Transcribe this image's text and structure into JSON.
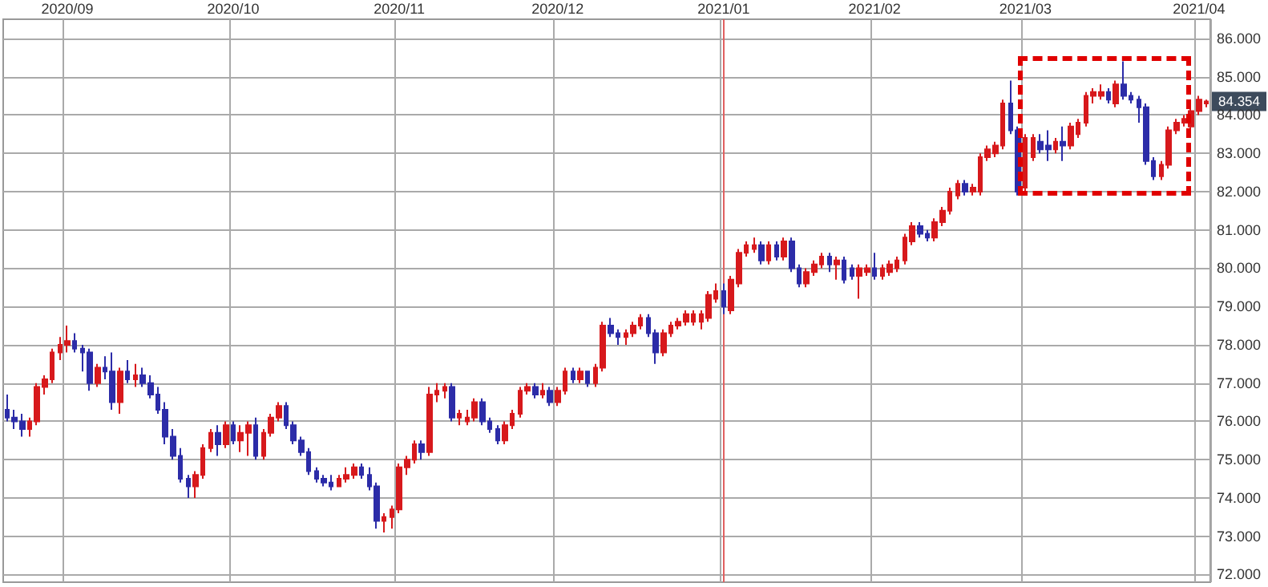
{
  "chart_data": {
    "type": "candlestick",
    "categories": [
      null,
      null,
      null,
      null,
      null,
      null,
      null,
      null,
      "2020/09",
      null,
      null,
      null,
      null,
      null,
      null,
      null,
      null,
      null,
      null,
      null,
      null,
      null,
      null,
      null,
      null,
      null,
      null,
      null,
      null,
      null,
      "2020/10",
      null,
      null,
      null,
      null,
      null,
      null,
      null,
      null,
      null,
      null,
      null,
      null,
      null,
      null,
      null,
      null,
      null,
      null,
      null,
      null,
      null,
      "2020/11",
      null,
      null,
      null,
      null,
      null,
      null,
      null,
      null,
      null,
      null,
      null,
      null,
      null,
      null,
      null,
      null,
      null,
      null,
      null,
      null,
      "2020/12",
      null,
      null,
      null,
      null,
      null,
      null,
      null,
      null,
      null,
      null,
      null,
      null,
      null,
      null,
      null,
      null,
      null,
      null,
      null,
      null,
      null,
      "2021/01",
      null,
      null,
      null,
      null,
      null,
      null,
      null,
      null,
      null,
      null,
      null,
      null,
      null,
      null,
      null,
      null,
      null,
      null,
      null,
      "2021/02",
      null,
      null,
      null,
      null,
      null,
      null,
      null,
      null,
      null,
      null,
      null,
      null,
      null,
      null,
      null,
      null,
      null,
      null,
      null,
      "2021/03",
      null,
      null,
      null,
      null,
      null,
      null,
      null,
      null,
      null,
      null,
      null,
      null,
      null,
      null,
      null,
      null,
      null,
      null,
      null,
      null,
      null,
      null,
      "2021/04",
      null
    ],
    "ohlc": [
      [
        76.3,
        76.7,
        76.0,
        76.1
      ],
      [
        76.1,
        76.3,
        75.8,
        76.0
      ],
      [
        76.0,
        76.2,
        75.6,
        75.8
      ],
      [
        75.8,
        76.1,
        75.6,
        76.0
      ],
      [
        76.0,
        77.0,
        75.9,
        76.9
      ],
      [
        76.9,
        77.2,
        76.7,
        77.1
      ],
      [
        77.1,
        77.9,
        77.0,
        77.8
      ],
      [
        77.8,
        78.2,
        77.6,
        78.0
      ],
      [
        78.0,
        78.5,
        77.8,
        78.1
      ],
      [
        78.1,
        78.3,
        77.8,
        77.9
      ],
      [
        77.9,
        78.0,
        77.3,
        77.8
      ],
      [
        77.8,
        77.9,
        76.8,
        77.0
      ],
      [
        77.0,
        77.5,
        76.9,
        77.4
      ],
      [
        77.4,
        77.7,
        77.1,
        77.3
      ],
      [
        77.3,
        77.8,
        76.3,
        76.5
      ],
      [
        76.5,
        77.4,
        76.2,
        77.3
      ],
      [
        77.3,
        77.6,
        77.0,
        77.1
      ],
      [
        77.1,
        77.5,
        76.9,
        77.2
      ],
      [
        77.2,
        77.4,
        76.9,
        77.0
      ],
      [
        77.0,
        77.2,
        76.6,
        76.7
      ],
      [
        76.7,
        76.9,
        76.2,
        76.3
      ],
      [
        76.3,
        76.5,
        75.4,
        75.6
      ],
      [
        75.6,
        75.8,
        75.0,
        75.1
      ],
      [
        75.1,
        75.3,
        74.4,
        74.5
      ],
      [
        74.5,
        74.6,
        74.0,
        74.3
      ],
      [
        74.3,
        74.7,
        74.0,
        74.6
      ],
      [
        74.6,
        75.4,
        74.5,
        75.3
      ],
      [
        75.3,
        75.8,
        75.2,
        75.7
      ],
      [
        75.7,
        75.9,
        75.1,
        75.4
      ],
      [
        75.4,
        76.0,
        75.3,
        75.9
      ],
      [
        75.9,
        76.0,
        75.4,
        75.5
      ],
      [
        75.5,
        75.9,
        75.2,
        75.7
      ],
      [
        75.7,
        76.0,
        75.1,
        75.9
      ],
      [
        75.9,
        76.1,
        75.0,
        75.1
      ],
      [
        75.1,
        75.8,
        75.0,
        75.7
      ],
      [
        75.7,
        76.2,
        75.6,
        76.1
      ],
      [
        76.1,
        76.5,
        76.0,
        76.4
      ],
      [
        76.4,
        76.5,
        75.8,
        75.9
      ],
      [
        75.9,
        76.0,
        75.4,
        75.5
      ],
      [
        75.5,
        75.6,
        75.1,
        75.2
      ],
      [
        75.2,
        75.3,
        74.6,
        74.7
      ],
      [
        74.7,
        74.8,
        74.4,
        74.5
      ],
      [
        74.5,
        74.6,
        74.3,
        74.4
      ],
      [
        74.4,
        74.6,
        74.2,
        74.3
      ],
      [
        74.3,
        74.6,
        74.3,
        74.5
      ],
      [
        74.5,
        74.8,
        74.4,
        74.6
      ],
      [
        74.6,
        74.9,
        74.5,
        74.8
      ],
      [
        74.8,
        74.9,
        74.5,
        74.6
      ],
      [
        74.6,
        74.8,
        74.2,
        74.3
      ],
      [
        74.3,
        74.4,
        73.2,
        73.4
      ],
      [
        73.4,
        73.6,
        73.1,
        73.5
      ],
      [
        73.5,
        73.8,
        73.2,
        73.7
      ],
      [
        73.7,
        74.9,
        73.6,
        74.8
      ],
      [
        74.8,
        75.1,
        74.6,
        75.0
      ],
      [
        75.0,
        75.5,
        74.9,
        75.4
      ],
      [
        75.4,
        75.5,
        75.0,
        75.2
      ],
      [
        75.2,
        76.9,
        75.1,
        76.7
      ],
      [
        76.7,
        77.0,
        76.5,
        76.8
      ],
      [
        76.8,
        77.0,
        76.6,
        76.9
      ],
      [
        76.9,
        77.0,
        76.0,
        76.1
      ],
      [
        76.1,
        76.3,
        75.9,
        76.2
      ],
      [
        76.0,
        76.3,
        75.9,
        76.1
      ],
      [
        76.1,
        76.6,
        76.0,
        76.5
      ],
      [
        76.5,
        76.6,
        75.9,
        76.0
      ],
      [
        76.0,
        76.1,
        75.7,
        75.8
      ],
      [
        75.8,
        75.9,
        75.4,
        75.5
      ],
      [
        75.5,
        76.0,
        75.4,
        75.9
      ],
      [
        75.9,
        76.3,
        75.8,
        76.2
      ],
      [
        76.2,
        76.9,
        76.1,
        76.8
      ],
      [
        76.8,
        77.0,
        76.7,
        76.9
      ],
      [
        76.9,
        77.0,
        76.6,
        76.7
      ],
      [
        76.7,
        77.0,
        76.6,
        76.8
      ],
      [
        76.8,
        76.9,
        76.4,
        76.5
      ],
      [
        76.5,
        76.9,
        76.4,
        76.8
      ],
      [
        76.8,
        77.4,
        76.7,
        77.3
      ],
      [
        77.3,
        77.4,
        77.0,
        77.1
      ],
      [
        77.1,
        77.4,
        77.0,
        77.3
      ],
      [
        77.3,
        77.3,
        76.9,
        77.0
      ],
      [
        77.0,
        77.5,
        76.9,
        77.4
      ],
      [
        77.4,
        78.6,
        77.3,
        78.5
      ],
      [
        78.5,
        78.7,
        78.2,
        78.3
      ],
      [
        78.3,
        78.4,
        78.0,
        78.2
      ],
      [
        78.2,
        78.4,
        78.0,
        78.3
      ],
      [
        78.3,
        78.6,
        78.2,
        78.5
      ],
      [
        78.5,
        78.8,
        78.4,
        78.7
      ],
      [
        78.7,
        78.8,
        78.2,
        78.3
      ],
      [
        78.3,
        78.4,
        77.5,
        77.8
      ],
      [
        77.8,
        78.4,
        77.7,
        78.3
      ],
      [
        78.3,
        78.6,
        78.2,
        78.5
      ],
      [
        78.5,
        78.7,
        78.4,
        78.6
      ],
      [
        78.6,
        78.9,
        78.5,
        78.8
      ],
      [
        78.6,
        78.9,
        78.5,
        78.8
      ],
      [
        78.6,
        78.9,
        78.4,
        78.8
      ],
      [
        78.7,
        79.4,
        78.6,
        79.3
      ],
      [
        79.2,
        79.6,
        79.1,
        79.4
      ],
      [
        79.4,
        79.6,
        78.8,
        79.0
      ],
      [
        78.9,
        79.8,
        78.8,
        79.7
      ],
      [
        79.6,
        80.5,
        79.5,
        80.4
      ],
      [
        80.4,
        80.7,
        80.3,
        80.6
      ],
      [
        80.5,
        80.8,
        80.4,
        80.6
      ],
      [
        80.6,
        80.7,
        80.1,
        80.2
      ],
      [
        80.2,
        80.7,
        80.1,
        80.6
      ],
      [
        80.6,
        80.7,
        80.2,
        80.3
      ],
      [
        80.3,
        80.8,
        80.2,
        80.7
      ],
      [
        80.7,
        80.8,
        79.9,
        80.0
      ],
      [
        80.0,
        80.1,
        79.5,
        79.6
      ],
      [
        79.6,
        80.0,
        79.5,
        79.9
      ],
      [
        79.9,
        80.2,
        79.8,
        80.1
      ],
      [
        80.1,
        80.4,
        80.0,
        80.3
      ],
      [
        80.3,
        80.4,
        79.9,
        80.1
      ],
      [
        80.1,
        80.3,
        79.7,
        80.2
      ],
      [
        80.2,
        80.3,
        79.6,
        79.7
      ],
      [
        80.0,
        80.1,
        79.7,
        79.8
      ],
      [
        79.8,
        80.1,
        79.2,
        80.0
      ],
      [
        79.9,
        80.1,
        79.8,
        80.0
      ],
      [
        80.0,
        80.4,
        79.7,
        79.8
      ],
      [
        79.8,
        80.1,
        79.7,
        80.0
      ],
      [
        79.9,
        80.2,
        79.8,
        80.1
      ],
      [
        80.0,
        80.3,
        79.9,
        80.2
      ],
      [
        80.2,
        80.9,
        80.1,
        80.8
      ],
      [
        80.7,
        81.2,
        80.6,
        81.1
      ],
      [
        81.1,
        81.2,
        80.8,
        80.9
      ],
      [
        80.9,
        81.0,
        80.7,
        80.8
      ],
      [
        80.8,
        81.3,
        80.7,
        81.2
      ],
      [
        81.2,
        81.6,
        81.1,
        81.5
      ],
      [
        81.5,
        82.1,
        81.4,
        82.0
      ],
      [
        81.9,
        82.3,
        81.8,
        82.2
      ],
      [
        82.2,
        82.3,
        81.9,
        82.0
      ],
      [
        82.0,
        82.2,
        81.9,
        82.1
      ],
      [
        82.0,
        83.0,
        81.9,
        82.9
      ],
      [
        82.9,
        83.2,
        82.8,
        83.1
      ],
      [
        83.0,
        83.3,
        82.9,
        83.2
      ],
      [
        83.2,
        84.4,
        83.1,
        84.3
      ],
      [
        84.3,
        84.9,
        83.5,
        83.6
      ],
      [
        83.6,
        83.7,
        81.9,
        82.0
      ],
      [
        82.1,
        83.5,
        82.0,
        83.4
      ],
      [
        82.9,
        83.5,
        82.8,
        83.4
      ],
      [
        83.3,
        83.5,
        83.0,
        83.1
      ],
      [
        83.2,
        83.6,
        82.8,
        83.1
      ],
      [
        83.1,
        83.4,
        83.0,
        83.3
      ],
      [
        83.3,
        83.7,
        82.8,
        83.2
      ],
      [
        83.2,
        83.8,
        83.1,
        83.7
      ],
      [
        83.5,
        83.9,
        83.4,
        83.8
      ],
      [
        83.8,
        84.6,
        83.7,
        84.5
      ],
      [
        84.5,
        84.7,
        84.3,
        84.6
      ],
      [
        84.5,
        84.8,
        84.4,
        84.6
      ],
      [
        84.6,
        84.7,
        84.3,
        84.4
      ],
      [
        84.3,
        84.9,
        84.2,
        84.8
      ],
      [
        84.8,
        85.4,
        84.4,
        84.5
      ],
      [
        84.5,
        84.6,
        84.3,
        84.4
      ],
      [
        84.4,
        84.5,
        83.8,
        84.2
      ],
      [
        84.2,
        84.3,
        82.7,
        82.8
      ],
      [
        82.8,
        82.9,
        82.3,
        82.4
      ],
      [
        82.4,
        82.8,
        82.3,
        82.7
      ],
      [
        82.7,
        83.7,
        82.6,
        83.6
      ],
      [
        83.6,
        83.9,
        83.5,
        83.8
      ],
      [
        83.8,
        84.0,
        83.7,
        83.9
      ],
      [
        83.7,
        84.2,
        83.6,
        84.1
      ],
      [
        84.1,
        84.5,
        84.0,
        84.4
      ],
      [
        84.3,
        84.4,
        84.2,
        84.354
      ]
    ],
    "colors": [
      "#2c2ca8",
      "#2c2ca8",
      "#2c2ca8",
      "#d7191c",
      "#d7191c",
      "#d7191c",
      "#d7191c",
      "#d7191c",
      "#d7191c",
      "#2c2ca8",
      "#2c2ca8",
      "#2c2ca8",
      "#d7191c",
      "#2c2ca8",
      "#2c2ca8",
      "#d7191c",
      "#2c2ca8",
      "#d7191c",
      "#2c2ca8",
      "#2c2ca8",
      "#2c2ca8",
      "#2c2ca8",
      "#2c2ca8",
      "#2c2ca8",
      "#2c2ca8",
      "#d7191c",
      "#d7191c",
      "#d7191c",
      "#2c2ca8",
      "#d7191c",
      "#2c2ca8",
      "#d7191c",
      "#d7191c",
      "#2c2ca8",
      "#d7191c",
      "#d7191c",
      "#d7191c",
      "#2c2ca8",
      "#2c2ca8",
      "#2c2ca8",
      "#2c2ca8",
      "#2c2ca8",
      "#2c2ca8",
      "#2c2ca8",
      "#d7191c",
      "#d7191c",
      "#d7191c",
      "#2c2ca8",
      "#2c2ca8",
      "#2c2ca8",
      "#d7191c",
      "#d7191c",
      "#d7191c",
      "#d7191c",
      "#d7191c",
      "#2c2ca8",
      "#d7191c",
      "#d7191c",
      "#d7191c",
      "#2c2ca8",
      "#d7191c",
      "#d7191c",
      "#d7191c",
      "#2c2ca8",
      "#2c2ca8",
      "#2c2ca8",
      "#d7191c",
      "#d7191c",
      "#d7191c",
      "#d7191c",
      "#2c2ca8",
      "#d7191c",
      "#2c2ca8",
      "#d7191c",
      "#d7191c",
      "#2c2ca8",
      "#d7191c",
      "#2c2ca8",
      "#d7191c",
      "#d7191c",
      "#2c2ca8",
      "#2c2ca8",
      "#d7191c",
      "#d7191c",
      "#d7191c",
      "#2c2ca8",
      "#2c2ca8",
      "#d7191c",
      "#d7191c",
      "#d7191c",
      "#d7191c",
      "#d7191c",
      "#d7191c",
      "#d7191c",
      "#d7191c",
      "#2c2ca8",
      "#d7191c",
      "#d7191c",
      "#d7191c",
      "#d7191c",
      "#2c2ca8",
      "#d7191c",
      "#2c2ca8",
      "#d7191c",
      "#2c2ca8",
      "#2c2ca8",
      "#d7191c",
      "#d7191c",
      "#d7191c",
      "#2c2ca8",
      "#d7191c",
      "#2c2ca8",
      "#2c2ca8",
      "#d7191c",
      "#d7191c",
      "#2c2ca8",
      "#d7191c",
      "#d7191c",
      "#d7191c",
      "#d7191c",
      "#d7191c",
      "#2c2ca8",
      "#2c2ca8",
      "#d7191c",
      "#d7191c",
      "#d7191c",
      "#d7191c",
      "#2c2ca8",
      "#d7191c",
      "#d7191c",
      "#d7191c",
      "#d7191c",
      "#d7191c",
      "#2c2ca8",
      "#2c2ca8",
      "#d7191c",
      "#d7191c",
      "#2c2ca8",
      "#2c2ca8",
      "#d7191c",
      "#2c2ca8",
      "#d7191c",
      "#d7191c",
      "#d7191c",
      "#d7191c",
      "#d7191c",
      "#2c2ca8",
      "#d7191c",
      "#2c2ca8",
      "#2c2ca8",
      "#2c2ca8",
      "#2c2ca8",
      "#2c2ca8",
      "#d7191c",
      "#d7191c",
      "#d7191c",
      "#d7191c",
      "#d7191c",
      "#d7191c",
      "#d7191c"
    ],
    "ylim": [
      71.8,
      86.5
    ],
    "yticks": [
      {
        "value": 72,
        "label": "72.000"
      },
      {
        "value": 73,
        "label": "73.000"
      },
      {
        "value": 74,
        "label": "74.000"
      },
      {
        "value": 75,
        "label": "75.000"
      },
      {
        "value": 76,
        "label": "76.000"
      },
      {
        "value": 77,
        "label": "77.000"
      },
      {
        "value": 78,
        "label": "78.000"
      },
      {
        "value": 79,
        "label": "79.000"
      },
      {
        "value": 80,
        "label": "80.000"
      },
      {
        "value": 81,
        "label": "81.000"
      },
      {
        "value": 82,
        "label": "82.000"
      },
      {
        "value": 83,
        "label": "83.000"
      },
      {
        "value": 84,
        "label": "84.000"
      },
      {
        "value": 85,
        "label": "85.000"
      },
      {
        "value": 86,
        "label": "86.000"
      }
    ],
    "grid": true,
    "ref_lines": [
      {
        "axis": "x",
        "value": "2021/01",
        "label": null,
        "color": "#e06060"
      }
    ],
    "annotations": [
      {
        "text": "84.354",
        "y": 84.354
      }
    ]
  }
}
